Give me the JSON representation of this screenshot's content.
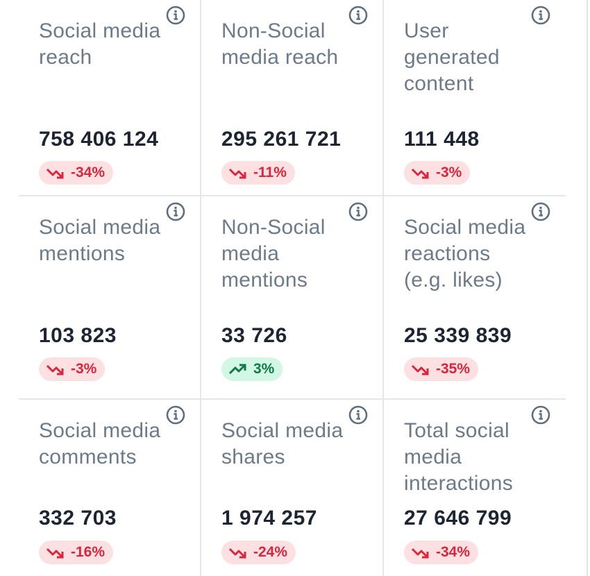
{
  "metrics": [
    {
      "title": "Social media reach",
      "value": "758 406 124",
      "change": "-34%",
      "trend": "down"
    },
    {
      "title": "Non-Social media reach",
      "value": "295 261 721",
      "change": "-11%",
      "trend": "down"
    },
    {
      "title": "User generated content",
      "value": "111 448",
      "change": "-3%",
      "trend": "down"
    },
    {
      "title": "Social media mentions",
      "value": "103 823",
      "change": "-3%",
      "trend": "down"
    },
    {
      "title": "Non-Social media mentions",
      "value": "33 726",
      "change": "3%",
      "trend": "up"
    },
    {
      "title": "Social media reactions (e.g. likes)",
      "value": "25 339 839",
      "change": "-35%",
      "trend": "down"
    },
    {
      "title": "Social media comments",
      "value": "332 703",
      "change": "-16%",
      "trend": "down"
    },
    {
      "title": "Social media shares",
      "value": "1 974 257",
      "change": "-24%",
      "trend": "down"
    },
    {
      "title": "Total social media interactions",
      "value": "27 646 799",
      "change": "-34%",
      "trend": "down"
    }
  ],
  "colors": {
    "down_bg": "#fde0e1",
    "down_fg": "#d7263d",
    "up_bg": "#d3f7e5",
    "up_fg": "#0f7a47",
    "title": "#6c7a89",
    "value": "#1d2533"
  }
}
